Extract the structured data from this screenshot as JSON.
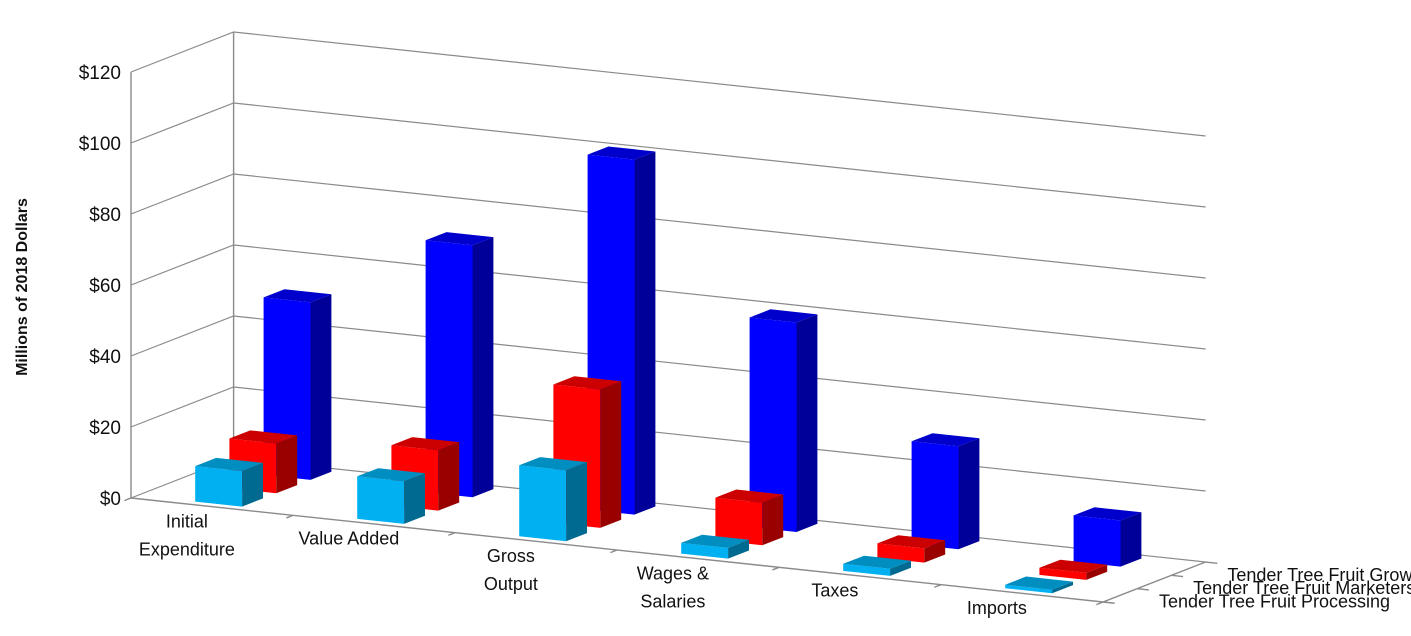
{
  "chart_data": {
    "type": "bar",
    "variant": "3d-clustered-column",
    "ylabel": "Millions of 2018 Dollars",
    "xlabel": "",
    "ylim": [
      0,
      120
    ],
    "y_tick_step": 20,
    "y_tick_labels": [
      "$0",
      "$20",
      "$40",
      "$60",
      "$80",
      "$100",
      "$120"
    ],
    "categories": [
      [
        "Initial",
        "Expenditure"
      ],
      [
        "Value Added"
      ],
      [
        "Gross",
        "Output"
      ],
      [
        "Wages &",
        "Salaries"
      ],
      [
        "Taxes"
      ],
      [
        "Imports"
      ]
    ],
    "series": [
      {
        "name": "Tender Tree Fruit Growers",
        "color": "#0000ff",
        "values": [
          50,
          71,
          100,
          59,
          29,
          13
        ]
      },
      {
        "name": "Tender Tree Fruit Marketers/Dealers",
        "color": "#ff0000",
        "values": [
          14,
          17,
          39,
          12,
          4,
          2
        ]
      },
      {
        "name": "Tender Tree Fruit Processing",
        "color": "#00b0f0",
        "values": [
          10,
          12,
          20,
          3,
          2,
          1
        ]
      }
    ],
    "grid": true,
    "legend": "depth-axis-labels-right"
  }
}
